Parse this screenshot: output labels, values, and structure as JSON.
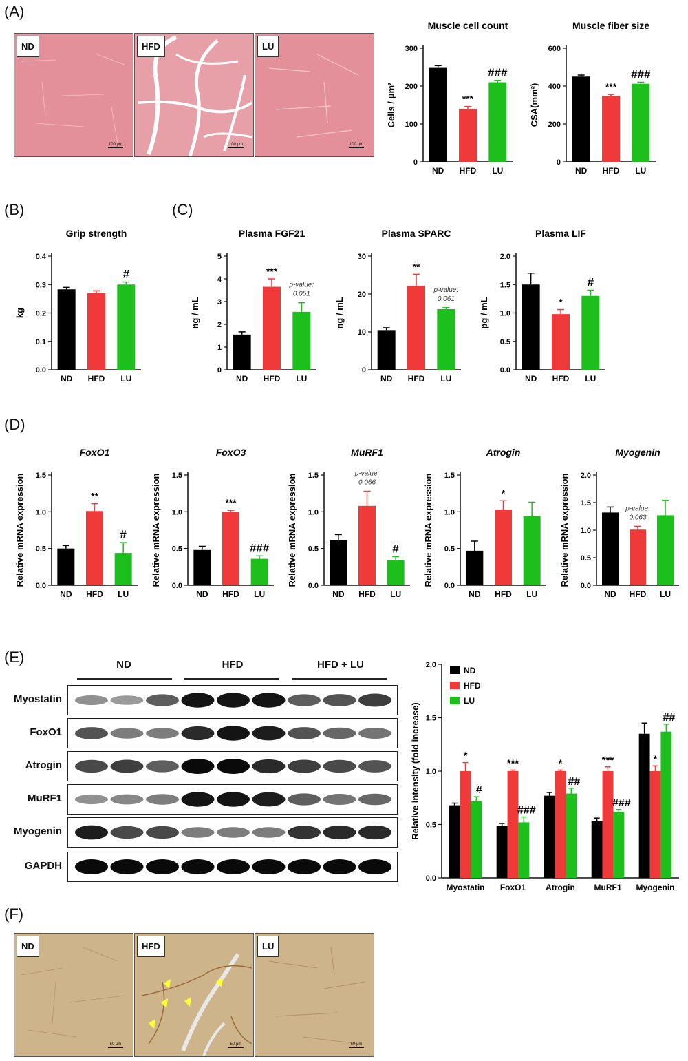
{
  "panels": {
    "A": "(A)",
    "B": "(B)",
    "C": "(C)",
    "D": "(D)",
    "E": "(E)",
    "F": "(F)"
  },
  "micro_labels": {
    "nd": "ND",
    "hfd": "HFD",
    "lu": "LU"
  },
  "scale_bars": {
    "a": "100 μm",
    "f": "50 μm"
  },
  "colors": {
    "ND": "#000000",
    "HFD": "#f03a3a",
    "LU": "#1dbf1d"
  },
  "blot": {
    "groups": [
      "ND",
      "HFD",
      "HFD + LU"
    ],
    "rows": [
      "Myostatin",
      "FoxO1",
      "Atrogin",
      "MuRF1",
      "Myogenin",
      "GAPDH"
    ]
  },
  "chart_data": [
    {
      "id": "cellcount",
      "type": "bar",
      "title": "Muscle cell count",
      "ylabel": "Cells / μm²",
      "categories": [
        "ND",
        "HFD",
        "LU"
      ],
      "values": [
        248,
        139,
        210
      ],
      "errors": [
        6,
        7,
        5
      ],
      "ylim": [
        0,
        300
      ],
      "ticks": [
        0,
        100,
        200,
        300
      ],
      "sig": [
        "",
        "***",
        "###"
      ],
      "yitalic": false
    },
    {
      "id": "fiber",
      "type": "bar",
      "title": "Muscle fiber size",
      "ylabel": "CSA(mm²)",
      "categories": [
        "ND",
        "HFD",
        "LU"
      ],
      "values": [
        450,
        348,
        412
      ],
      "errors": [
        8,
        8,
        8
      ],
      "ylim": [
        0,
        600
      ],
      "ticks": [
        0,
        200,
        400,
        600
      ],
      "sig": [
        "",
        "***",
        "###"
      ]
    },
    {
      "id": "grip",
      "type": "bar",
      "title": "Grip strength",
      "ylabel": "kg",
      "categories": [
        "ND",
        "HFD",
        "LU"
      ],
      "values": [
        0.283,
        0.27,
        0.3
      ],
      "errors": [
        0.007,
        0.008,
        0.009
      ],
      "ylim": [
        0,
        0.4
      ],
      "ticks": [
        0.0,
        0.1,
        0.2,
        0.3,
        0.4
      ],
      "sig": [
        "",
        "",
        "#"
      ]
    },
    {
      "id": "fgf21",
      "type": "bar",
      "title": "Plasma FGF21",
      "ylabel": "ng / mL",
      "categories": [
        "ND",
        "HFD",
        "LU"
      ],
      "values": [
        1.55,
        3.65,
        2.55
      ],
      "errors": [
        0.12,
        0.35,
        0.4
      ],
      "ylim": [
        0,
        5
      ],
      "ticks": [
        0,
        1,
        2,
        3,
        4,
        5
      ],
      "sig": [
        "",
        "***",
        ""
      ],
      "note": "p-value: 0.051"
    },
    {
      "id": "sparc",
      "type": "bar",
      "title": "Plasma SPARC",
      "ylabel": "ng / mL",
      "categories": [
        "ND",
        "HFD",
        "LU"
      ],
      "values": [
        10.3,
        22.2,
        16.0
      ],
      "errors": [
        0.8,
        3.0,
        0.4
      ],
      "ylim": [
        0,
        30
      ],
      "ticks": [
        0,
        10,
        20,
        30
      ],
      "sig": [
        "",
        "**",
        ""
      ],
      "note": "p-value: 0.061"
    },
    {
      "id": "lif",
      "type": "bar",
      "title": "Plasma LIF",
      "ylabel": "pg / mL",
      "categories": [
        "ND",
        "HFD",
        "LU"
      ],
      "values": [
        1.5,
        0.98,
        1.3
      ],
      "errors": [
        0.2,
        0.08,
        0.1
      ],
      "ylim": [
        0,
        2.0
      ],
      "ticks": [
        0.0,
        0.5,
        1.0,
        1.5,
        2.0
      ],
      "sig": [
        "",
        "*",
        "#"
      ]
    },
    {
      "id": "foxo1",
      "type": "bar",
      "title": "FoxO1",
      "title_italic": true,
      "ylabel": "Relative mRNA expression",
      "categories": [
        "ND",
        "HFD",
        "LU"
      ],
      "values": [
        0.5,
        1.01,
        0.44
      ],
      "errors": [
        0.04,
        0.1,
        0.14
      ],
      "ylim": [
        0,
        1.5
      ],
      "ticks": [
        0.0,
        0.5,
        1.0,
        1.5
      ],
      "sig": [
        "",
        "**",
        "#"
      ]
    },
    {
      "id": "foxo3",
      "type": "bar",
      "title": "FoxO3",
      "title_italic": true,
      "ylabel": "Relative mRNA expression",
      "categories": [
        "ND",
        "HFD",
        "LU"
      ],
      "values": [
        0.48,
        1.0,
        0.36
      ],
      "errors": [
        0.05,
        0.02,
        0.04
      ],
      "ylim": [
        0,
        1.5
      ],
      "ticks": [
        0.0,
        0.5,
        1.0,
        1.5
      ],
      "sig": [
        "",
        "***",
        "###"
      ]
    },
    {
      "id": "murf1",
      "type": "bar",
      "title": "MuRF1",
      "title_italic": true,
      "ylabel": "Relative mRNA expression",
      "categories": [
        "ND",
        "HFD",
        "LU"
      ],
      "values": [
        0.61,
        1.08,
        0.34
      ],
      "errors": [
        0.08,
        0.2,
        0.05
      ],
      "ylim": [
        0,
        1.5
      ],
      "ticks": [
        0.0,
        0.5,
        1.0,
        1.5
      ],
      "sig": [
        "",
        "",
        "#"
      ],
      "note": "p-value: 0.066"
    },
    {
      "id": "atrogin",
      "type": "bar",
      "title": "Atrogin",
      "title_italic": true,
      "ylabel": "Relative mRNA expression",
      "categories": [
        "ND",
        "HFD",
        "LU"
      ],
      "values": [
        0.47,
        1.03,
        0.94
      ],
      "errors": [
        0.13,
        0.12,
        0.19
      ],
      "ylim": [
        0,
        1.5
      ],
      "ticks": [
        0.0,
        0.5,
        1.0,
        1.5
      ],
      "sig": [
        "",
        "*",
        ""
      ]
    },
    {
      "id": "myogenin_mrna",
      "type": "bar",
      "title": "Myogenin",
      "title_italic": true,
      "ylabel": "Relative mRNA expression",
      "categories": [
        "ND",
        "HFD",
        "LU"
      ],
      "values": [
        1.32,
        1.01,
        1.27
      ],
      "errors": [
        0.1,
        0.06,
        0.27
      ],
      "ylim": [
        0,
        2.0
      ],
      "ticks": [
        0.0,
        0.5,
        1.0,
        1.5,
        2.0
      ],
      "sig": [
        "",
        "",
        ""
      ],
      "note": "p-value: 0.063"
    },
    {
      "id": "wb",
      "type": "bar",
      "ylabel": "Relative intensity (fold increase)",
      "categories": [
        "Myostatin",
        "FoxO1",
        "Atrogin",
        "MuRF1",
        "Myogenin"
      ],
      "series": [
        {
          "name": "ND",
          "values": [
            0.68,
            0.49,
            0.77,
            0.53,
            1.35
          ],
          "errors": [
            0.02,
            0.02,
            0.03,
            0.03,
            0.1
          ],
          "sig": [
            "",
            "",
            "",
            "",
            ""
          ]
        },
        {
          "name": "HFD",
          "values": [
            1.0,
            1.0,
            1.0,
            1.0,
            1.0
          ],
          "errors": [
            0.08,
            0.01,
            0.01,
            0.04,
            0.05
          ],
          "sig": [
            "*",
            "***",
            "*",
            "***",
            "*"
          ]
        },
        {
          "name": "LU",
          "values": [
            0.72,
            0.52,
            0.79,
            0.62,
            1.37
          ],
          "errors": [
            0.04,
            0.05,
            0.05,
            0.02,
            0.07
          ],
          "sig": [
            "#",
            "###",
            "##",
            "###",
            "##"
          ]
        }
      ],
      "ylim": [
        0,
        2.0
      ],
      "ticks": [
        0.0,
        0.5,
        1.0,
        1.5,
        2.0
      ],
      "legend": "top-left"
    }
  ]
}
